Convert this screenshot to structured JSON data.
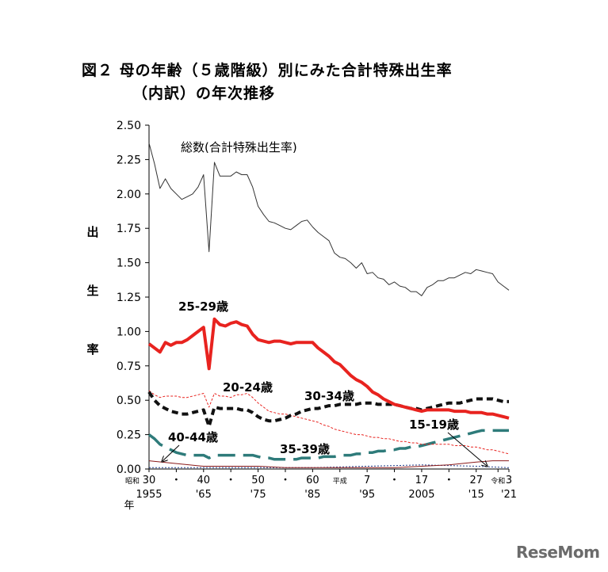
{
  "title_line1": "図２ 母の年齢（５歳階級）別にみた合計特殊出生率",
  "title_line2": "（内訳）の年次推移",
  "ylabel_chars": [
    "出",
    "生",
    "率"
  ],
  "xlabel": "年",
  "logo": "ReseMom",
  "chart_data": {
    "type": "line",
    "title": "図２ 母の年齢（５歳階級）別にみた合計特殊出生率（内訳）の年次推移",
    "xlabel": "年",
    "ylabel": "出生率",
    "xlim": [
      1955,
      2021
    ],
    "ylim": [
      0,
      2.5
    ],
    "y_ticks": [
      "0.00",
      "0.25",
      "0.50",
      "0.75",
      "1.00",
      "1.25",
      "1.50",
      "1.75",
      "2.00",
      "2.25",
      "2.50"
    ],
    "x_ticks_top": [
      {
        "x": 1955,
        "label": "30",
        "era": "昭和"
      },
      {
        "x": 1960,
        "label": "・"
      },
      {
        "x": 1965,
        "label": "40"
      },
      {
        "x": 1970,
        "label": "・"
      },
      {
        "x": 1975,
        "label": "50"
      },
      {
        "x": 1980,
        "label": "・"
      },
      {
        "x": 1985,
        "label": "60"
      },
      {
        "x": 1990,
        "label": "平成",
        "small": true
      },
      {
        "x": 1995,
        "label": "7"
      },
      {
        "x": 2000,
        "label": "・"
      },
      {
        "x": 2005,
        "label": "17"
      },
      {
        "x": 2010,
        "label": "・"
      },
      {
        "x": 2015,
        "label": "27"
      },
      {
        "x": 2019,
        "label": "令和",
        "small": true
      },
      {
        "x": 2021,
        "label": "3"
      }
    ],
    "x_ticks_bottom": [
      {
        "x": 1955,
        "label": "1955"
      },
      {
        "x": 1965,
        "label": "'65"
      },
      {
        "x": 1975,
        "label": "'75"
      },
      {
        "x": 1985,
        "label": "'85"
      },
      {
        "x": 1995,
        "label": "'95"
      },
      {
        "x": 2005,
        "label": "2005"
      },
      {
        "x": 2015,
        "label": "'15"
      },
      {
        "x": 2021,
        "label": "'21"
      }
    ],
    "annotations": [
      {
        "text": "総数(合計特殊出生率)",
        "series": "total"
      },
      {
        "text": "25-29歳",
        "series": "a25"
      },
      {
        "text": "20-24歳",
        "series": "a20"
      },
      {
        "text": "30-34歳",
        "series": "a30"
      },
      {
        "text": "40-44歳",
        "series": "a40"
      },
      {
        "text": "35-39歳",
        "series": "a35"
      },
      {
        "text": "15-19歳",
        "series": "a15"
      }
    ],
    "series": [
      {
        "id": "total",
        "color": "#333333",
        "style": "thin",
        "x": [
          1955,
          1956,
          1957,
          1958,
          1959,
          1960,
          1961,
          1962,
          1963,
          1964,
          1965,
          1966,
          1967,
          1968,
          1969,
          1970,
          1971,
          1972,
          1973,
          1974,
          1975,
          1976,
          1977,
          1978,
          1979,
          1980,
          1981,
          1982,
          1983,
          1984,
          1985,
          1986,
          1987,
          1988,
          1989,
          1990,
          1991,
          1992,
          1993,
          1994,
          1995,
          1996,
          1997,
          1998,
          1999,
          2000,
          2001,
          2002,
          2003,
          2004,
          2005,
          2006,
          2007,
          2008,
          2009,
          2010,
          2011,
          2012,
          2013,
          2014,
          2015,
          2016,
          2017,
          2018,
          2019,
          2020,
          2021
        ],
        "values": [
          2.37,
          2.22,
          2.04,
          2.11,
          2.04,
          2.0,
          1.96,
          1.98,
          2.0,
          2.05,
          2.14,
          1.58,
          2.23,
          2.13,
          2.13,
          2.13,
          2.16,
          2.14,
          2.14,
          2.05,
          1.91,
          1.85,
          1.8,
          1.79,
          1.77,
          1.75,
          1.74,
          1.77,
          1.8,
          1.81,
          1.76,
          1.72,
          1.69,
          1.66,
          1.57,
          1.54,
          1.53,
          1.5,
          1.46,
          1.5,
          1.42,
          1.43,
          1.39,
          1.38,
          1.34,
          1.36,
          1.33,
          1.32,
          1.29,
          1.29,
          1.26,
          1.32,
          1.34,
          1.37,
          1.37,
          1.39,
          1.39,
          1.41,
          1.43,
          1.42,
          1.45,
          1.44,
          1.43,
          1.42,
          1.36,
          1.33,
          1.3
        ]
      },
      {
        "id": "a25",
        "color": "#e8231f",
        "style": "thick",
        "x": [
          1955,
          1956,
          1957,
          1958,
          1959,
          1960,
          1961,
          1962,
          1963,
          1964,
          1965,
          1966,
          1967,
          1968,
          1969,
          1970,
          1971,
          1972,
          1973,
          1974,
          1975,
          1976,
          1977,
          1978,
          1979,
          1980,
          1981,
          1982,
          1983,
          1984,
          1985,
          1986,
          1987,
          1988,
          1989,
          1990,
          1991,
          1992,
          1993,
          1994,
          1995,
          1996,
          1997,
          1998,
          1999,
          2000,
          2001,
          2002,
          2003,
          2004,
          2005,
          2006,
          2007,
          2008,
          2009,
          2010,
          2011,
          2012,
          2013,
          2014,
          2015,
          2016,
          2017,
          2018,
          2019,
          2020,
          2021
        ],
        "values": [
          0.91,
          0.88,
          0.85,
          0.92,
          0.9,
          0.92,
          0.92,
          0.94,
          0.97,
          1.0,
          1.03,
          0.73,
          1.09,
          1.05,
          1.04,
          1.06,
          1.07,
          1.05,
          1.04,
          0.98,
          0.94,
          0.93,
          0.92,
          0.93,
          0.93,
          0.92,
          0.91,
          0.92,
          0.92,
          0.92,
          0.92,
          0.88,
          0.85,
          0.82,
          0.78,
          0.76,
          0.72,
          0.68,
          0.65,
          0.63,
          0.6,
          0.56,
          0.54,
          0.51,
          0.49,
          0.47,
          0.46,
          0.45,
          0.44,
          0.43,
          0.42,
          0.43,
          0.43,
          0.43,
          0.43,
          0.43,
          0.42,
          0.42,
          0.42,
          0.41,
          0.41,
          0.41,
          0.4,
          0.4,
          0.39,
          0.38,
          0.37
        ]
      },
      {
        "id": "a20",
        "color": "#e8231f",
        "style": "thin-dashed",
        "x": [
          1955,
          1956,
          1957,
          1958,
          1959,
          1960,
          1961,
          1962,
          1963,
          1964,
          1965,
          1966,
          1967,
          1968,
          1969,
          1970,
          1971,
          1972,
          1973,
          1974,
          1975,
          1976,
          1977,
          1978,
          1979,
          1980,
          1981,
          1982,
          1983,
          1984,
          1985,
          1986,
          1987,
          1988,
          1989,
          1990,
          1991,
          1992,
          1993,
          1994,
          1995,
          1996,
          1997,
          1998,
          1999,
          2000,
          2001,
          2002,
          2003,
          2004,
          2005,
          2006,
          2007,
          2008,
          2009,
          2010,
          2011,
          2012,
          2013,
          2014,
          2015,
          2016,
          2017,
          2018,
          2019,
          2020,
          2021
        ],
        "values": [
          0.57,
          0.54,
          0.52,
          0.53,
          0.53,
          0.53,
          0.52,
          0.52,
          0.53,
          0.54,
          0.55,
          0.45,
          0.55,
          0.53,
          0.53,
          0.52,
          0.54,
          0.54,
          0.55,
          0.52,
          0.48,
          0.45,
          0.42,
          0.41,
          0.4,
          0.4,
          0.39,
          0.38,
          0.37,
          0.36,
          0.35,
          0.34,
          0.32,
          0.31,
          0.29,
          0.28,
          0.27,
          0.26,
          0.25,
          0.25,
          0.24,
          0.23,
          0.23,
          0.22,
          0.22,
          0.21,
          0.2,
          0.2,
          0.19,
          0.19,
          0.18,
          0.18,
          0.18,
          0.18,
          0.18,
          0.18,
          0.17,
          0.17,
          0.17,
          0.16,
          0.16,
          0.15,
          0.14,
          0.14,
          0.13,
          0.12,
          0.11
        ]
      },
      {
        "id": "a30",
        "color": "#111111",
        "style": "thick-dashed",
        "x": [
          1955,
          1956,
          1957,
          1958,
          1959,
          1960,
          1961,
          1962,
          1963,
          1964,
          1965,
          1966,
          1967,
          1968,
          1969,
          1970,
          1971,
          1972,
          1973,
          1974,
          1975,
          1976,
          1977,
          1978,
          1979,
          1980,
          1981,
          1982,
          1983,
          1984,
          1985,
          1986,
          1987,
          1988,
          1989,
          1990,
          1991,
          1992,
          1993,
          1994,
          1995,
          1996,
          1997,
          1998,
          1999,
          2000,
          2001,
          2002,
          2003,
          2004,
          2005,
          2006,
          2007,
          2008,
          2009,
          2010,
          2011,
          2012,
          2013,
          2014,
          2015,
          2016,
          2017,
          2018,
          2019,
          2020,
          2021
        ],
        "values": [
          0.56,
          0.5,
          0.46,
          0.44,
          0.42,
          0.41,
          0.4,
          0.4,
          0.41,
          0.42,
          0.43,
          0.31,
          0.45,
          0.44,
          0.44,
          0.44,
          0.44,
          0.43,
          0.43,
          0.41,
          0.38,
          0.36,
          0.35,
          0.35,
          0.36,
          0.37,
          0.39,
          0.4,
          0.42,
          0.43,
          0.44,
          0.44,
          0.45,
          0.46,
          0.46,
          0.47,
          0.47,
          0.47,
          0.47,
          0.48,
          0.48,
          0.48,
          0.47,
          0.47,
          0.47,
          0.47,
          0.46,
          0.45,
          0.44,
          0.44,
          0.43,
          0.44,
          0.45,
          0.46,
          0.47,
          0.48,
          0.48,
          0.48,
          0.49,
          0.5,
          0.51,
          0.51,
          0.51,
          0.51,
          0.5,
          0.49,
          0.49
        ]
      },
      {
        "id": "a35",
        "color": "#2e7b7a",
        "style": "long-dashed",
        "x": [
          1955,
          1956,
          1957,
          1958,
          1959,
          1960,
          1961,
          1962,
          1963,
          1964,
          1965,
          1966,
          1967,
          1968,
          1969,
          1970,
          1971,
          1972,
          1973,
          1974,
          1975,
          1976,
          1977,
          1978,
          1979,
          1980,
          1981,
          1982,
          1983,
          1984,
          1985,
          1986,
          1987,
          1988,
          1989,
          1990,
          1991,
          1992,
          1993,
          1994,
          1995,
          1996,
          1997,
          1998,
          1999,
          2000,
          2001,
          2002,
          2003,
          2004,
          2005,
          2006,
          2007,
          2008,
          2009,
          2010,
          2011,
          2012,
          2013,
          2014,
          2015,
          2016,
          2017,
          2018,
          2019,
          2020,
          2021
        ],
        "values": [
          0.25,
          0.22,
          0.18,
          0.16,
          0.14,
          0.12,
          0.11,
          0.1,
          0.1,
          0.1,
          0.1,
          0.08,
          0.1,
          0.1,
          0.1,
          0.1,
          0.1,
          0.1,
          0.1,
          0.1,
          0.09,
          0.08,
          0.08,
          0.07,
          0.07,
          0.07,
          0.07,
          0.07,
          0.08,
          0.08,
          0.08,
          0.08,
          0.09,
          0.09,
          0.09,
          0.1,
          0.1,
          0.1,
          0.11,
          0.11,
          0.12,
          0.12,
          0.13,
          0.13,
          0.14,
          0.14,
          0.15,
          0.15,
          0.16,
          0.16,
          0.17,
          0.18,
          0.19,
          0.2,
          0.21,
          0.22,
          0.23,
          0.24,
          0.25,
          0.26,
          0.27,
          0.28,
          0.28,
          0.28,
          0.28,
          0.28,
          0.28
        ]
      },
      {
        "id": "a40",
        "color": "#8b1a1a",
        "style": "thin",
        "x": [
          1955,
          1960,
          1965,
          1970,
          1975,
          1980,
          1985,
          1990,
          1995,
          2000,
          2005,
          2010,
          2015,
          2018,
          2021
        ],
        "values": [
          0.06,
          0.04,
          0.02,
          0.02,
          0.02,
          0.01,
          0.01,
          0.01,
          0.01,
          0.01,
          0.02,
          0.03,
          0.05,
          0.06,
          0.06
        ]
      },
      {
        "id": "a15",
        "color": "#1f3d8b",
        "style": "dotted",
        "x": [
          1955,
          1965,
          1975,
          1985,
          1995,
          2005,
          2015,
          2021
        ],
        "values": [
          0.01,
          0.01,
          0.01,
          0.01,
          0.02,
          0.03,
          0.02,
          0.01
        ]
      }
    ]
  }
}
